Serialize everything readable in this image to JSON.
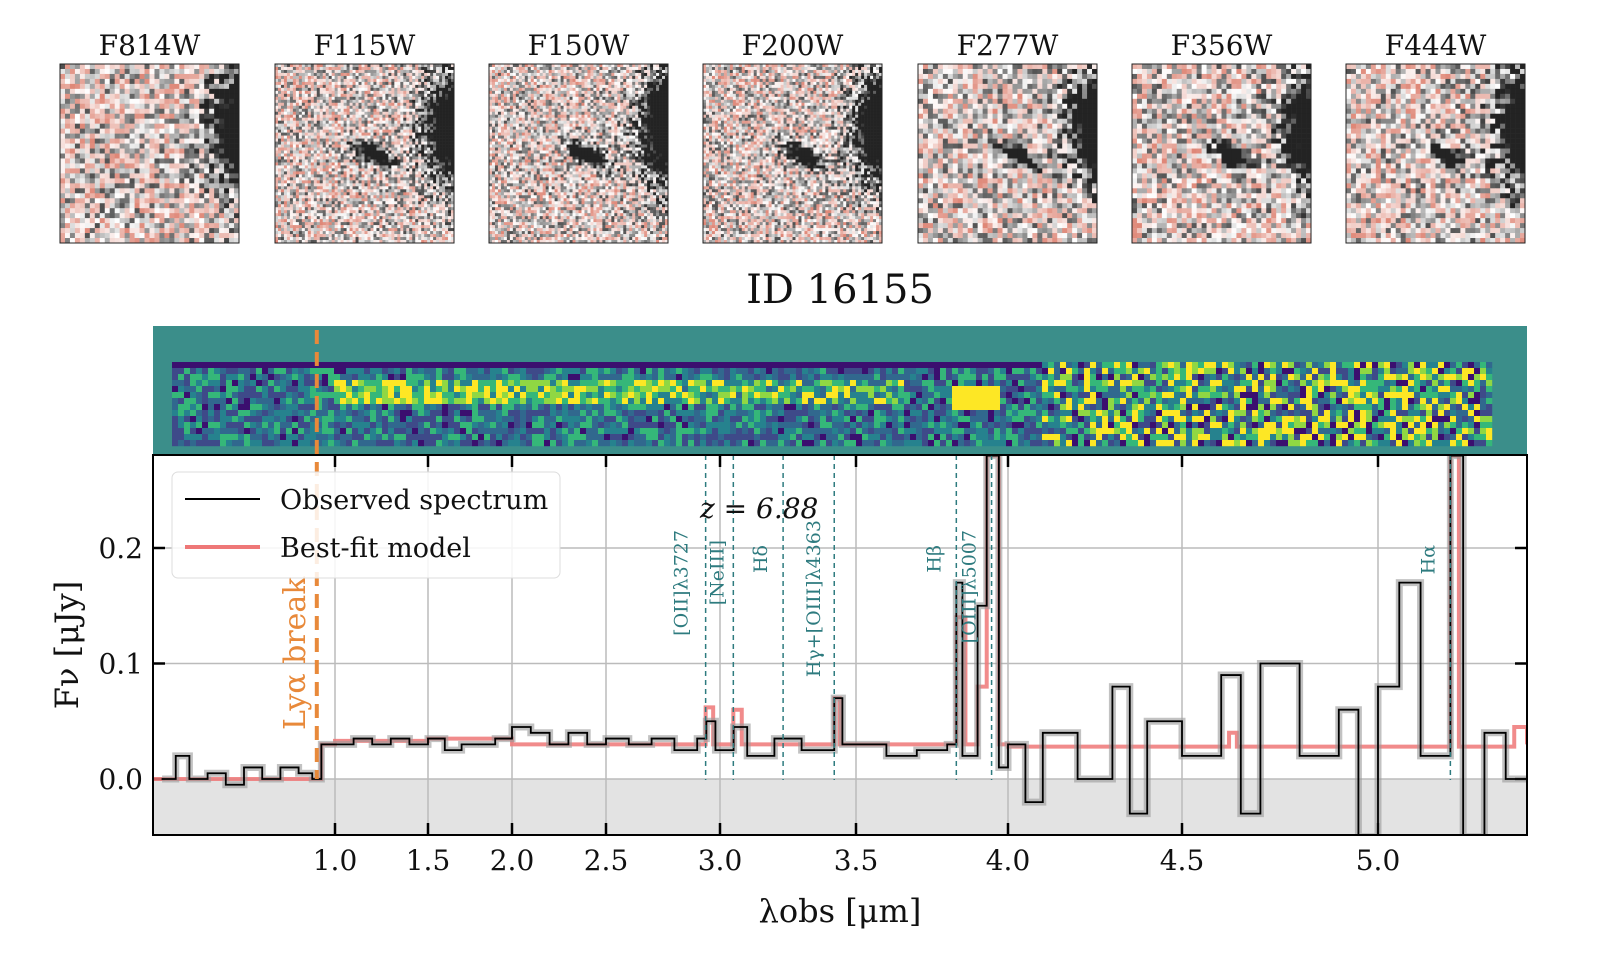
{
  "cutouts": {
    "filters": [
      "F814W",
      "F115W",
      "F150W",
      "F200W",
      "F277W",
      "F356W",
      "F444W"
    ]
  },
  "chart_data": {
    "type": "line",
    "title": "ID 16155",
    "xlabel": "λobs [μm]",
    "ylabel": "Fν [μJy]",
    "xlim": [
      0.6,
      5.35
    ],
    "ylim": [
      -0.05,
      0.28
    ],
    "xticks": [
      1.0,
      1.5,
      2.0,
      2.5,
      3.0,
      3.5,
      4.0,
      4.5,
      5.0
    ],
    "xtick_labels": [
      "1.0",
      "1.5",
      "2.0",
      "2.5",
      "3.0",
      "3.5",
      "4.0",
      "4.5",
      "5.0"
    ],
    "yticks": [
      0.0,
      0.1,
      0.2
    ],
    "ytick_labels": [
      "0.0",
      "0.1",
      "0.2"
    ],
    "grid": true,
    "legend": {
      "placement": "top-left",
      "entries": [
        "Observed spectrum",
        "Best-fit model"
      ]
    },
    "redshift_label": "z = 6.88",
    "lya_break": {
      "label": "Lyα break",
      "wavelength": 0.96,
      "color": "#e8893a"
    },
    "emission_lines": [
      {
        "label": "[OII]λ3727",
        "wavelength": 2.937
      },
      {
        "label": "[NeIII]",
        "wavelength": 3.049
      },
      {
        "label": "Hδ",
        "wavelength": 3.232
      },
      {
        "label": "Hγ+[OIII]λ4363",
        "wavelength": 3.42
      },
      {
        "label": "Hβ",
        "wavelength": 3.83
      },
      {
        "label": "[OIII]λ5007",
        "wavelength": 3.946
      },
      {
        "label": "Hα",
        "wavelength": 5.17
      }
    ],
    "series": [
      {
        "name": "Observed spectrum",
        "color": "#000000",
        "x": [
          0.62,
          0.65,
          0.68,
          0.72,
          0.76,
          0.8,
          0.84,
          0.88,
          0.92,
          0.95,
          0.97,
          1.0,
          1.1,
          1.2,
          1.3,
          1.4,
          1.5,
          1.6,
          1.7,
          1.8,
          1.9,
          2.0,
          2.1,
          2.2,
          2.3,
          2.4,
          2.5,
          2.6,
          2.7,
          2.8,
          2.9,
          2.94,
          2.98,
          3.05,
          3.1,
          3.2,
          3.3,
          3.42,
          3.45,
          3.5,
          3.6,
          3.7,
          3.8,
          3.83,
          3.85,
          3.9,
          3.93,
          3.95,
          3.97,
          4.0,
          4.05,
          4.1,
          4.2,
          4.3,
          4.35,
          4.4,
          4.5,
          4.6,
          4.65,
          4.7,
          4.8,
          4.9,
          4.95,
          5.0,
          5.05,
          5.1,
          5.17,
          5.2,
          5.25,
          5.3,
          5.35
        ],
        "y": [
          0.0,
          0.02,
          0.0,
          0.005,
          -0.005,
          0.01,
          0.0,
          0.01,
          0.005,
          0.0,
          0.03,
          0.03,
          0.035,
          0.03,
          0.035,
          0.03,
          0.035,
          0.025,
          0.03,
          0.03,
          0.035,
          0.045,
          0.04,
          0.03,
          0.04,
          0.03,
          0.035,
          0.03,
          0.035,
          0.025,
          0.035,
          0.05,
          0.025,
          0.045,
          0.02,
          0.035,
          0.025,
          0.07,
          0.03,
          0.03,
          0.02,
          0.025,
          0.03,
          0.17,
          0.02,
          0.15,
          0.28,
          0.28,
          0.01,
          0.03,
          -0.02,
          0.04,
          0.0,
          0.08,
          -0.03,
          0.05,
          0.02,
          0.09,
          -0.03,
          0.1,
          0.02,
          0.06,
          -0.05,
          0.08,
          0.17,
          0.02,
          0.28,
          -0.05,
          0.04,
          0.0,
          0.0
        ]
      },
      {
        "name": "Best-fit model",
        "color": "#ee7777",
        "x": [
          0.6,
          0.95,
          0.97,
          1.0,
          1.5,
          2.0,
          2.5,
          2.9,
          2.937,
          2.97,
          3.02,
          3.049,
          3.08,
          3.4,
          3.42,
          3.44,
          3.8,
          3.83,
          3.86,
          3.9,
          3.93,
          3.946,
          3.97,
          4.0,
          4.6,
          4.62,
          4.64,
          5.15,
          5.17,
          5.19,
          5.3,
          5.32,
          5.35
        ],
        "y": [
          0.0,
          0.0,
          0.03,
          0.033,
          0.035,
          0.03,
          0.03,
          0.03,
          0.062,
          0.03,
          0.03,
          0.06,
          0.03,
          0.03,
          0.07,
          0.03,
          0.03,
          0.14,
          0.03,
          0.08,
          0.28,
          0.28,
          0.03,
          0.028,
          0.028,
          0.04,
          0.028,
          0.028,
          0.28,
          0.028,
          0.028,
          0.045,
          0.03
        ]
      }
    ]
  }
}
